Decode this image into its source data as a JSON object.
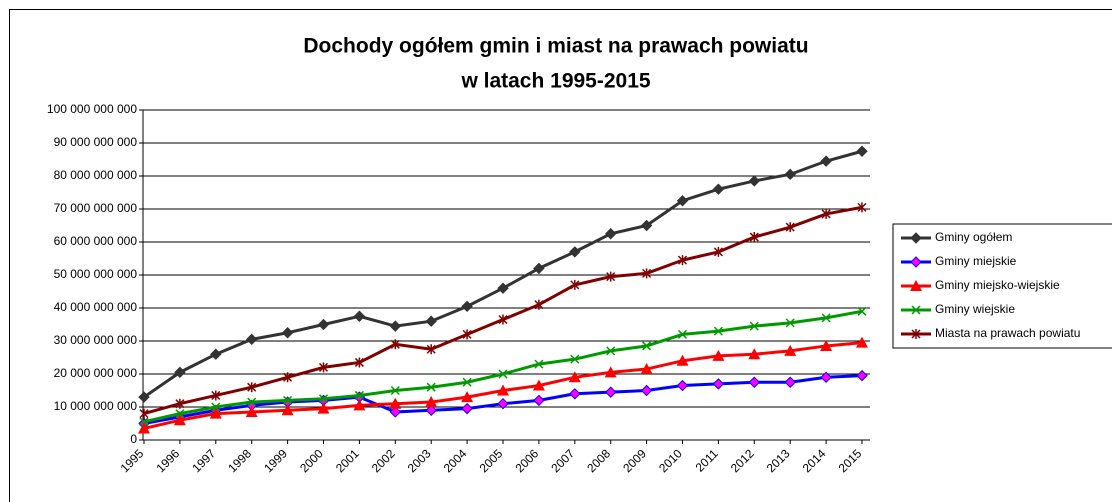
{
  "chart_data": {
    "type": "line",
    "title": [
      "Dochody ogółem gmin i miast na prawach powiatu",
      "w latach 1995-2015"
    ],
    "categories": [
      "1995",
      "1996",
      "1997",
      "1998",
      "1999",
      "2000",
      "2001",
      "2002",
      "2003",
      "2004",
      "2005",
      "2006",
      "2007",
      "2008",
      "2009",
      "2010",
      "2011",
      "2012",
      "2013",
      "2014",
      "2015"
    ],
    "series": [
      {
        "name": "Gminy ogółem",
        "color": "#333333",
        "marker": "diamond",
        "marker_color": "#333333",
        "values": [
          13000000000,
          20500000000,
          26000000000,
          30500000000,
          32500000000,
          35000000000,
          37500000000,
          34500000000,
          36000000000,
          40500000000,
          46000000000,
          52000000000,
          57000000000,
          62500000000,
          65000000000,
          72500000000,
          76000000000,
          78500000000,
          80500000000,
          84500000000,
          87500000000
        ]
      },
      {
        "name": "Gminy miejskie",
        "color": "#0000ff",
        "marker": "diamond",
        "marker_color": "#ff00ff",
        "values": [
          5000000000,
          7000000000,
          9000000000,
          10500000000,
          11500000000,
          12000000000,
          13000000000,
          8500000000,
          9000000000,
          9500000000,
          11000000000,
          12000000000,
          14000000000,
          14500000000,
          15000000000,
          16500000000,
          17000000000,
          17500000000,
          17500000000,
          19000000000,
          19500000000
        ]
      },
      {
        "name": "Gminy miejsko-wiejskie",
        "color": "#ff0000",
        "marker": "triangle",
        "marker_color": "#ff0000",
        "values": [
          3500000000,
          6000000000,
          8000000000,
          8500000000,
          9000000000,
          9500000000,
          10500000000,
          11000000000,
          11500000000,
          13000000000,
          15000000000,
          16500000000,
          19000000000,
          20500000000,
          21500000000,
          24000000000,
          25500000000,
          26000000000,
          27000000000,
          28500000000,
          29500000000
        ]
      },
      {
        "name": "Gminy wiejskie",
        "color": "#009900",
        "marker": "x",
        "marker_color": "#009900",
        "values": [
          5500000000,
          8000000000,
          10000000000,
          11500000000,
          12000000000,
          12500000000,
          13500000000,
          15000000000,
          16000000000,
          17500000000,
          20000000000,
          23000000000,
          24500000000,
          27000000000,
          28500000000,
          32000000000,
          33000000000,
          34500000000,
          35500000000,
          37000000000,
          39000000000
        ]
      },
      {
        "name": "Miasta na prawach powiatu",
        "color": "#800000",
        "marker": "star",
        "marker_color": "#800000",
        "values": [
          8000000000,
          11000000000,
          13500000000,
          16000000000,
          19000000000,
          22000000000,
          23500000000,
          29000000000,
          27500000000,
          32000000000,
          36500000000,
          41000000000,
          47000000000,
          49500000000,
          50500000000,
          54500000000,
          57000000000,
          61500000000,
          64500000000,
          68500000000,
          70500000000
        ]
      }
    ],
    "ylim": [
      0,
      100000000000
    ],
    "yticks": [
      0,
      {
        "value": 10000000000,
        "label": "10 000 000 000"
      },
      {
        "value": 20000000000,
        "label": "20 000 000 000"
      },
      {
        "value": 30000000000,
        "label": "30 000 000 000"
      },
      {
        "value": 40000000000,
        "label": "40 000 000 000"
      },
      {
        "value": 50000000000,
        "label": "50 000 000 000"
      },
      {
        "value": 60000000000,
        "label": "60 000 000 000"
      },
      {
        "value": 70000000000,
        "label": "70 000 000 000"
      },
      {
        "value": 80000000000,
        "label": "80 000 000 000"
      },
      {
        "value": 90000000000,
        "label": "90 000 000 000"
      },
      {
        "value": 100000000000,
        "label": "100 000 000 000"
      }
    ],
    "grid": true,
    "legend": "right"
  }
}
